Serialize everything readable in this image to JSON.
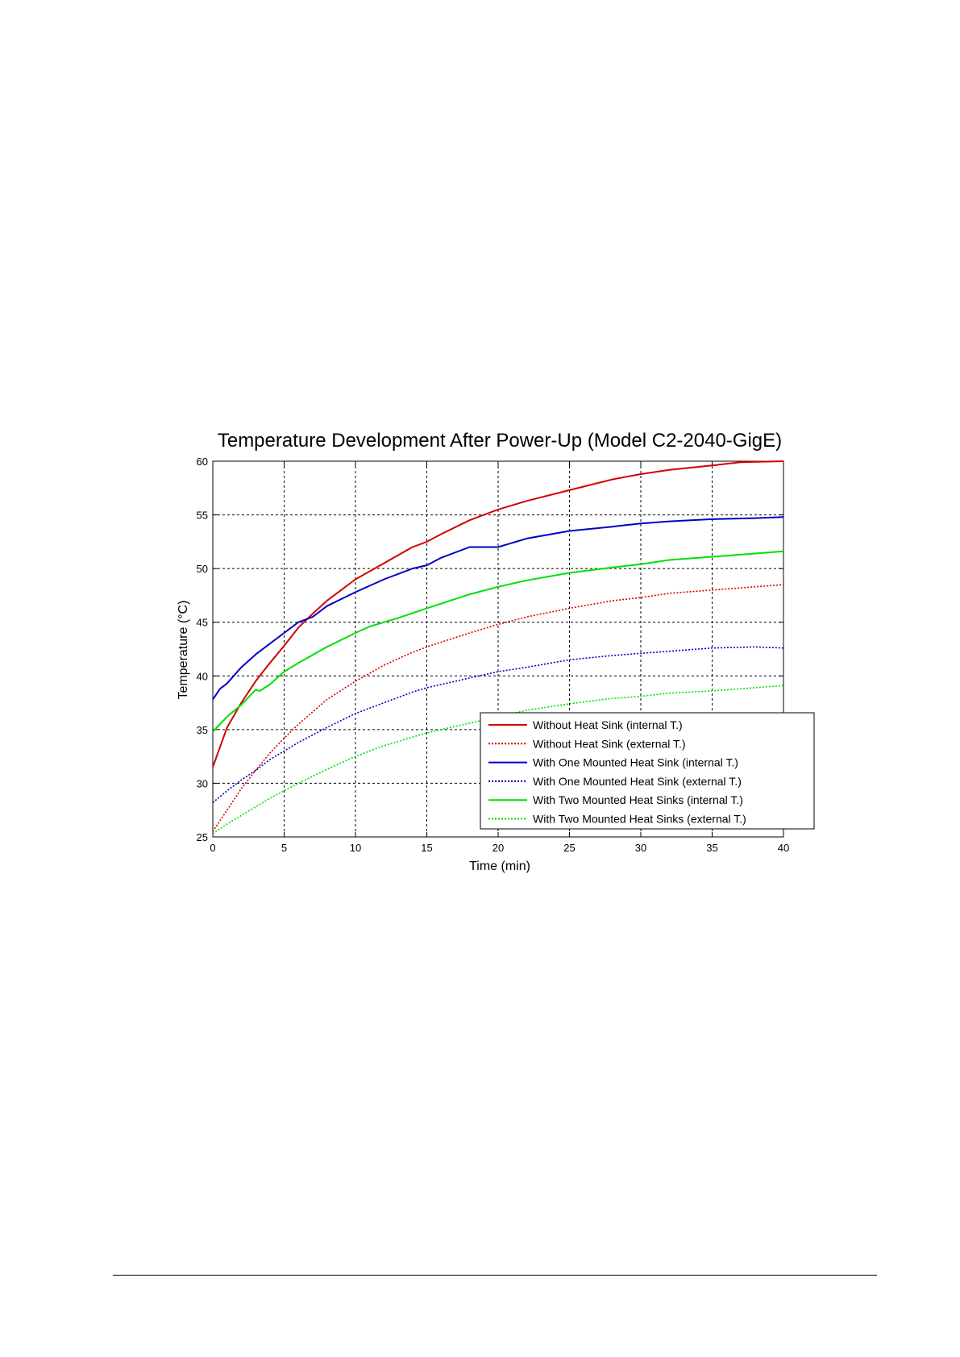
{
  "chart_data": {
    "type": "line",
    "title": "Temperature Development After Power-Up (Model C2-2040-GigE)",
    "xlabel": "Time (min)",
    "ylabel": "Temperature (°C)",
    "xlim": [
      0,
      40
    ],
    "ylim": [
      25,
      60
    ],
    "xticks": [
      0,
      5,
      10,
      15,
      20,
      25,
      30,
      35,
      40
    ],
    "yticks": [
      25,
      30,
      35,
      40,
      45,
      50,
      55,
      60
    ],
    "grid": true,
    "legend_position": "bottom-right",
    "series": [
      {
        "name": "Without Heat Sink (internal T.)",
        "color": "#d40000",
        "style": "solid",
        "x": [
          0,
          1,
          2,
          3,
          4,
          5,
          6,
          7,
          8,
          9,
          10,
          12,
          14,
          15,
          16,
          18,
          20,
          22,
          25,
          28,
          30,
          32,
          35,
          37,
          40
        ],
        "y": [
          31.5,
          35.2,
          37.5,
          39.5,
          41.2,
          42.8,
          44.5,
          45.8,
          47.0,
          48.0,
          49.0,
          50.5,
          52.0,
          52.5,
          53.2,
          54.5,
          55.5,
          56.3,
          57.3,
          58.3,
          58.8,
          59.2,
          59.6,
          59.9,
          60.0
        ]
      },
      {
        "name": "Without Heat Sink (external T.)",
        "color": "#d40000",
        "style": "dotted",
        "x": [
          0,
          1,
          2,
          3,
          4,
          5,
          6,
          8,
          10,
          12,
          14,
          15,
          18,
          20,
          22,
          25,
          28,
          30,
          32,
          35,
          38,
          40
        ],
        "y": [
          25.5,
          27.5,
          29.5,
          31.2,
          32.8,
          34.2,
          35.5,
          37.8,
          39.5,
          41.0,
          42.2,
          42.7,
          44.0,
          44.8,
          45.5,
          46.3,
          47.0,
          47.3,
          47.7,
          48.0,
          48.3,
          48.5
        ]
      },
      {
        "name": "With One Mounted Heat Sink (internal T.)",
        "color": "#0000c8",
        "style": "solid",
        "x": [
          0,
          0.5,
          1,
          2,
          3,
          4,
          5,
          6,
          7,
          8,
          10,
          12,
          14,
          15,
          16,
          18,
          20,
          22,
          25,
          28,
          30,
          32,
          35,
          38,
          40
        ],
        "y": [
          37.8,
          38.8,
          39.3,
          40.8,
          42.0,
          43.0,
          44.0,
          45.0,
          45.5,
          46.5,
          47.8,
          49.0,
          50.0,
          50.3,
          51.0,
          52.0,
          52.0,
          52.8,
          53.5,
          53.9,
          54.2,
          54.4,
          54.6,
          54.7,
          54.8
        ]
      },
      {
        "name": "With One Mounted Heat Sink (external T.)",
        "color": "#0000c8",
        "style": "dotted",
        "x": [
          0,
          1,
          2,
          3,
          4,
          5,
          6,
          8,
          10,
          12,
          14,
          15,
          18,
          20,
          22,
          25,
          28,
          30,
          32,
          35,
          38,
          40
        ],
        "y": [
          28.2,
          29.3,
          30.3,
          31.2,
          32.2,
          33.0,
          33.8,
          35.2,
          36.5,
          37.5,
          38.5,
          38.9,
          39.8,
          40.4,
          40.8,
          41.5,
          41.9,
          42.1,
          42.3,
          42.6,
          42.7,
          42.6
        ]
      },
      {
        "name": "With Two Mounted Heat Sinks (internal T.)",
        "color": "#00e000",
        "style": "solid",
        "x": [
          0,
          1,
          2,
          3,
          3.3,
          4,
          5,
          6,
          8,
          10,
          11,
          12,
          13,
          15,
          18,
          20,
          22,
          25,
          28,
          30,
          32,
          35,
          38,
          40
        ],
        "y": [
          34.8,
          36.2,
          37.3,
          38.7,
          38.6,
          39.2,
          40.4,
          41.2,
          42.7,
          44.0,
          44.6,
          45.0,
          45.4,
          46.3,
          47.6,
          48.3,
          48.9,
          49.6,
          50.1,
          50.4,
          50.8,
          51.1,
          51.4,
          51.6
        ]
      },
      {
        "name": "With Two Mounted Heat Sinks (external T.)",
        "color": "#00e000",
        "style": "dotted",
        "x": [
          0,
          1,
          2,
          3,
          4,
          5,
          6,
          8,
          10,
          12,
          14,
          15,
          18,
          20,
          22,
          25,
          28,
          30,
          32,
          35,
          38,
          40
        ],
        "y": [
          25.3,
          26.2,
          27.0,
          27.8,
          28.6,
          29.3,
          30.0,
          31.3,
          32.5,
          33.5,
          34.3,
          34.7,
          35.6,
          36.2,
          36.8,
          37.4,
          37.9,
          38.1,
          38.4,
          38.6,
          38.9,
          39.1
        ]
      }
    ]
  }
}
